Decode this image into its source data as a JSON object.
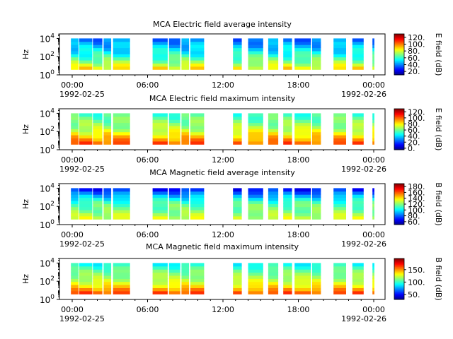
{
  "figure": {
    "x_tick_labels": [
      "00:00",
      "06:00",
      "12:00",
      "18:00",
      "00:00"
    ],
    "x_date_start": "1992-02-25",
    "x_date_end": "1992-02-26",
    "ylabel": "Hz"
  },
  "chart_data": [
    {
      "type": "heatmap",
      "title": "MCA  Electric field average intensity",
      "ylabel": "Hz",
      "yscale": "log",
      "ylim": [
        1,
        31623
      ],
      "y_ticks": [
        "10",
        "10",
        "10"
      ],
      "y_tick_exponents": [
        "0",
        "2",
        "4"
      ],
      "x_hours": [
        0,
        6,
        12,
        18,
        24
      ],
      "colorbar": {
        "label": "E field (dB)",
        "range": [
          10,
          130
        ],
        "ticks": [
          "20.",
          "40.",
          "60.",
          "80.",
          "100.",
          "120."
        ],
        "tick_values": [
          20,
          40,
          60,
          80,
          100,
          120
        ]
      },
      "data_segments_hours": [
        [
          -0.1,
          0.5
        ],
        [
          0.55,
          1.6
        ],
        [
          1.65,
          2.4
        ],
        [
          2.5,
          3.1
        ],
        [
          3.25,
          4.6
        ],
        [
          6.4,
          7.6
        ],
        [
          7.7,
          8.6
        ],
        [
          8.7,
          9.3
        ],
        [
          9.4,
          10.5
        ],
        [
          12.8,
          13.5
        ],
        [
          14.0,
          15.2
        ],
        [
          15.6,
          16.4
        ],
        [
          16.8,
          17.5
        ],
        [
          17.7,
          19.0
        ],
        [
          19.1,
          19.8
        ],
        [
          20.8,
          21.8
        ],
        [
          22.3,
          23.2
        ],
        [
          23.9,
          24.05
        ]
      ],
      "levels_low_to_high_freq": [
        85,
        70,
        58,
        48,
        40
      ],
      "colors": [
        "#000080",
        "#0000ff",
        "#00ffff",
        "#00ff00",
        "#ffff00",
        "#ff8000",
        "#ff0000"
      ]
    },
    {
      "type": "heatmap",
      "title": "MCA  Electric field maximum intensity",
      "ylabel": "Hz",
      "yscale": "log",
      "ylim": [
        1,
        31623
      ],
      "y_ticks": [
        "10",
        "10",
        "10"
      ],
      "y_tick_exponents": [
        "0",
        "2",
        "4"
      ],
      "x_hours": [
        0,
        6,
        12,
        18,
        24
      ],
      "colorbar": {
        "label": "E field (dB)",
        "range": [
          -5,
          130
        ],
        "ticks": [
          "0.",
          "20.",
          "40.",
          "60.",
          "80.",
          "100.",
          "120."
        ],
        "tick_values": [
          0,
          20,
          40,
          60,
          80,
          100,
          120
        ]
      },
      "data_segments_hours": [
        [
          -0.1,
          0.5
        ],
        [
          0.55,
          1.6
        ],
        [
          1.65,
          2.4
        ],
        [
          2.5,
          3.1
        ],
        [
          3.25,
          4.6
        ],
        [
          6.4,
          7.6
        ],
        [
          7.7,
          8.6
        ],
        [
          8.7,
          9.3
        ],
        [
          9.4,
          10.5
        ],
        [
          12.8,
          13.5
        ],
        [
          14.0,
          15.2
        ],
        [
          15.6,
          16.4
        ],
        [
          16.8,
          17.5
        ],
        [
          17.7,
          19.0
        ],
        [
          19.1,
          19.8
        ],
        [
          20.8,
          21.8
        ],
        [
          22.3,
          23.2
        ],
        [
          23.9,
          24.05
        ]
      ],
      "levels_low_to_high_freq": [
        100,
        85,
        70,
        62,
        55
      ],
      "colors": [
        "#000080",
        "#0000ff",
        "#00ffff",
        "#00ff00",
        "#ffff00",
        "#ff8000",
        "#ff0000"
      ]
    },
    {
      "type": "heatmap",
      "title": "MCA  Magnetic field average intensity",
      "ylabel": "Hz",
      "yscale": "log",
      "ylim": [
        1,
        31623
      ],
      "y_ticks": [
        "10",
        "10",
        "10"
      ],
      "y_tick_exponents": [
        "0",
        "2",
        "4"
      ],
      "x_hours": [
        0,
        6,
        12,
        18,
        24
      ],
      "colorbar": {
        "label": "B field (dB)",
        "range": [
          50,
          190
        ],
        "ticks": [
          "60.",
          "80.",
          "100.",
          "120.",
          "140.",
          "160.",
          "180."
        ],
        "tick_values": [
          60,
          80,
          100,
          120,
          140,
          160,
          180
        ]
      },
      "data_segments_hours": [
        [
          -0.1,
          0.5
        ],
        [
          0.55,
          1.6
        ],
        [
          1.65,
          2.4
        ],
        [
          2.5,
          3.1
        ],
        [
          3.25,
          4.6
        ],
        [
          6.4,
          7.6
        ],
        [
          7.7,
          8.6
        ],
        [
          8.7,
          9.3
        ],
        [
          9.4,
          10.5
        ],
        [
          12.8,
          13.5
        ],
        [
          14.0,
          15.2
        ],
        [
          15.6,
          16.4
        ],
        [
          16.8,
          17.5
        ],
        [
          17.7,
          19.0
        ],
        [
          19.1,
          19.8
        ],
        [
          20.8,
          21.8
        ],
        [
          22.3,
          23.2
        ],
        [
          23.9,
          24.05
        ]
      ],
      "levels_low_to_high_freq": [
        130,
        120,
        115,
        95,
        72
      ],
      "colors": [
        "#000080",
        "#0000ff",
        "#00ffff",
        "#00ff00",
        "#ffff00",
        "#ff8000",
        "#ff0000"
      ]
    },
    {
      "type": "heatmap",
      "title": "MCA  Magnetic field maximum intensity",
      "ylabel": "Hz",
      "yscale": "log",
      "ylim": [
        1,
        31623
      ],
      "y_ticks": [
        "10",
        "10",
        "10"
      ],
      "y_tick_exponents": [
        "0",
        "2",
        "4"
      ],
      "x_hours": [
        0,
        6,
        12,
        18,
        24
      ],
      "colorbar": {
        "label": "B field (dB)",
        "range": [
          30,
          195
        ],
        "ticks": [
          "50.",
          "100.",
          "150."
        ],
        "tick_values": [
          50,
          100,
          150
        ]
      },
      "data_segments_hours": [
        [
          -0.1,
          0.5
        ],
        [
          0.55,
          1.6
        ],
        [
          1.65,
          2.4
        ],
        [
          2.5,
          3.1
        ],
        [
          3.25,
          4.6
        ],
        [
          6.4,
          7.6
        ],
        [
          7.7,
          8.6
        ],
        [
          8.7,
          9.3
        ],
        [
          9.4,
          10.5
        ],
        [
          12.8,
          13.5
        ],
        [
          14.0,
          15.2
        ],
        [
          15.6,
          16.4
        ],
        [
          16.8,
          17.5
        ],
        [
          17.7,
          19.0
        ],
        [
          19.1,
          19.8
        ],
        [
          20.8,
          21.8
        ],
        [
          22.3,
          23.2
        ],
        [
          23.9,
          24.05
        ]
      ],
      "levels_low_to_high_freq": [
        160,
        135,
        120,
        110,
        95
      ],
      "colors": [
        "#000080",
        "#0000ff",
        "#00ffff",
        "#00ff00",
        "#ffff00",
        "#ff8000",
        "#ff0000"
      ]
    }
  ]
}
